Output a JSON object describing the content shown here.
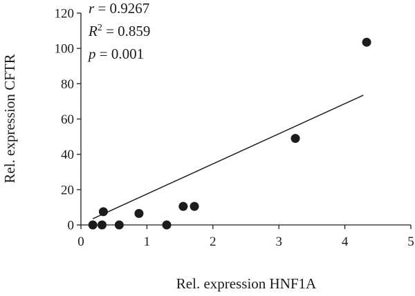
{
  "chart_data": {
    "type": "scatter",
    "xlabel": "Rel. expression HNF1A",
    "ylabel": "Rel. expression CFTR",
    "xlim": [
      0,
      5
    ],
    "ylim": [
      0,
      120
    ],
    "xticks": [
      0,
      1,
      2,
      3,
      4,
      5
    ],
    "yticks": [
      0,
      20,
      40,
      60,
      80,
      100,
      120
    ],
    "grid": false,
    "points": [
      {
        "x": 0.18,
        "y": 0
      },
      {
        "x": 0.32,
        "y": 0
      },
      {
        "x": 0.34,
        "y": 7.5
      },
      {
        "x": 0.58,
        "y": 0
      },
      {
        "x": 0.88,
        "y": 6.5
      },
      {
        "x": 1.3,
        "y": 0
      },
      {
        "x": 1.55,
        "y": 10.5
      },
      {
        "x": 1.72,
        "y": 10.5
      },
      {
        "x": 3.25,
        "y": 49
      },
      {
        "x": 4.33,
        "y": 103.5
      }
    ],
    "trendline": {
      "x1": 0.18,
      "y1": 3.5,
      "x2": 4.28,
      "y2": 73.5
    },
    "annotations": {
      "r_symbol": "r",
      "r_text": " = 0.9267",
      "r2_symbol": "R",
      "r2_sup": "2",
      "r2_text": " = 0.859",
      "p_symbol": "p",
      "p_text": " = 0.001"
    },
    "colors": {
      "marker": "#1c1c1c",
      "line": "#1c1c1c",
      "axis": "#1c1c1c"
    }
  }
}
